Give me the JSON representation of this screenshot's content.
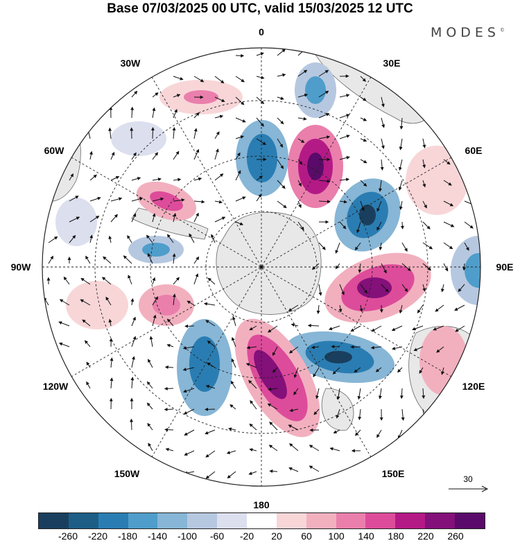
{
  "title": "Base 07/03/2025 00 UTC, valid 15/03/2025 12 UTC",
  "brand": {
    "text": "MODES",
    "mark": "©"
  },
  "map": {
    "projection": "south-polar-stereographic",
    "labels": {
      "top": "0",
      "bottom": "180",
      "left": "90W",
      "right": "90E",
      "upper_left": "30W",
      "upper_right": "30E",
      "mid_left_upper": "60W",
      "mid_right_upper": "60E",
      "mid_left_lower": "120W",
      "mid_right_lower": "120E",
      "lower_left": "150W",
      "lower_right": "150E"
    },
    "colors": {
      "land": "#e8e8e8",
      "coast": "#666666",
      "grid": "#222222",
      "arrow": "#111111"
    }
  },
  "vector_reference": {
    "label": "30"
  },
  "colorbar": {
    "ticks": [
      "-260",
      "-220",
      "-180",
      "-140",
      "-100",
      "-60",
      "-20",
      "20",
      "60",
      "100",
      "140",
      "180",
      "220",
      "260"
    ],
    "colors": [
      "#1a3f5e",
      "#1d5d86",
      "#2a7db2",
      "#4f9dca",
      "#87b6d6",
      "#b6c8e0",
      "#dcdfee",
      "#ffffff",
      "#f8d6d8",
      "#f2b0bf",
      "#ea7fac",
      "#dd4c9a",
      "#b41a86",
      "#84107a",
      "#5a0a6a"
    ]
  }
}
